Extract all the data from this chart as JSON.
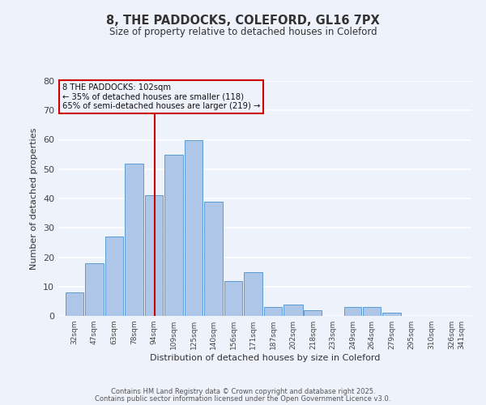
{
  "title": "8, THE PADDOCKS, COLEFORD, GL16 7PX",
  "subtitle": "Size of property relative to detached houses in Coleford",
  "xlabel": "Distribution of detached houses by size in Coleford",
  "ylabel": "Number of detached properties",
  "bins": [
    32,
    47,
    63,
    78,
    94,
    109,
    125,
    140,
    156,
    171,
    187,
    202,
    218,
    233,
    249,
    264,
    279,
    295,
    310,
    326,
    341
  ],
  "counts": [
    8,
    18,
    27,
    52,
    41,
    55,
    60,
    39,
    12,
    15,
    3,
    4,
    2,
    0,
    3,
    3,
    1,
    0,
    0,
    0
  ],
  "bar_color": "#aec6e8",
  "bar_edgecolor": "#5b9bd5",
  "vline_x": 102,
  "vline_color": "#cc0000",
  "ylim": [
    0,
    80
  ],
  "yticks": [
    0,
    10,
    20,
    30,
    40,
    50,
    60,
    70,
    80
  ],
  "annotation_line1": "8 THE PADDOCKS: 102sqm",
  "annotation_line2": "← 35% of detached houses are smaller (118)",
  "annotation_line3": "65% of semi-detached houses are larger (219) →",
  "annotation_box_color": "#cc0000",
  "footer1": "Contains HM Land Registry data © Crown copyright and database right 2025.",
  "footer2": "Contains public sector information licensed under the Open Government Licence v3.0.",
  "background_color": "#eef2fa",
  "grid_color": "#ffffff"
}
